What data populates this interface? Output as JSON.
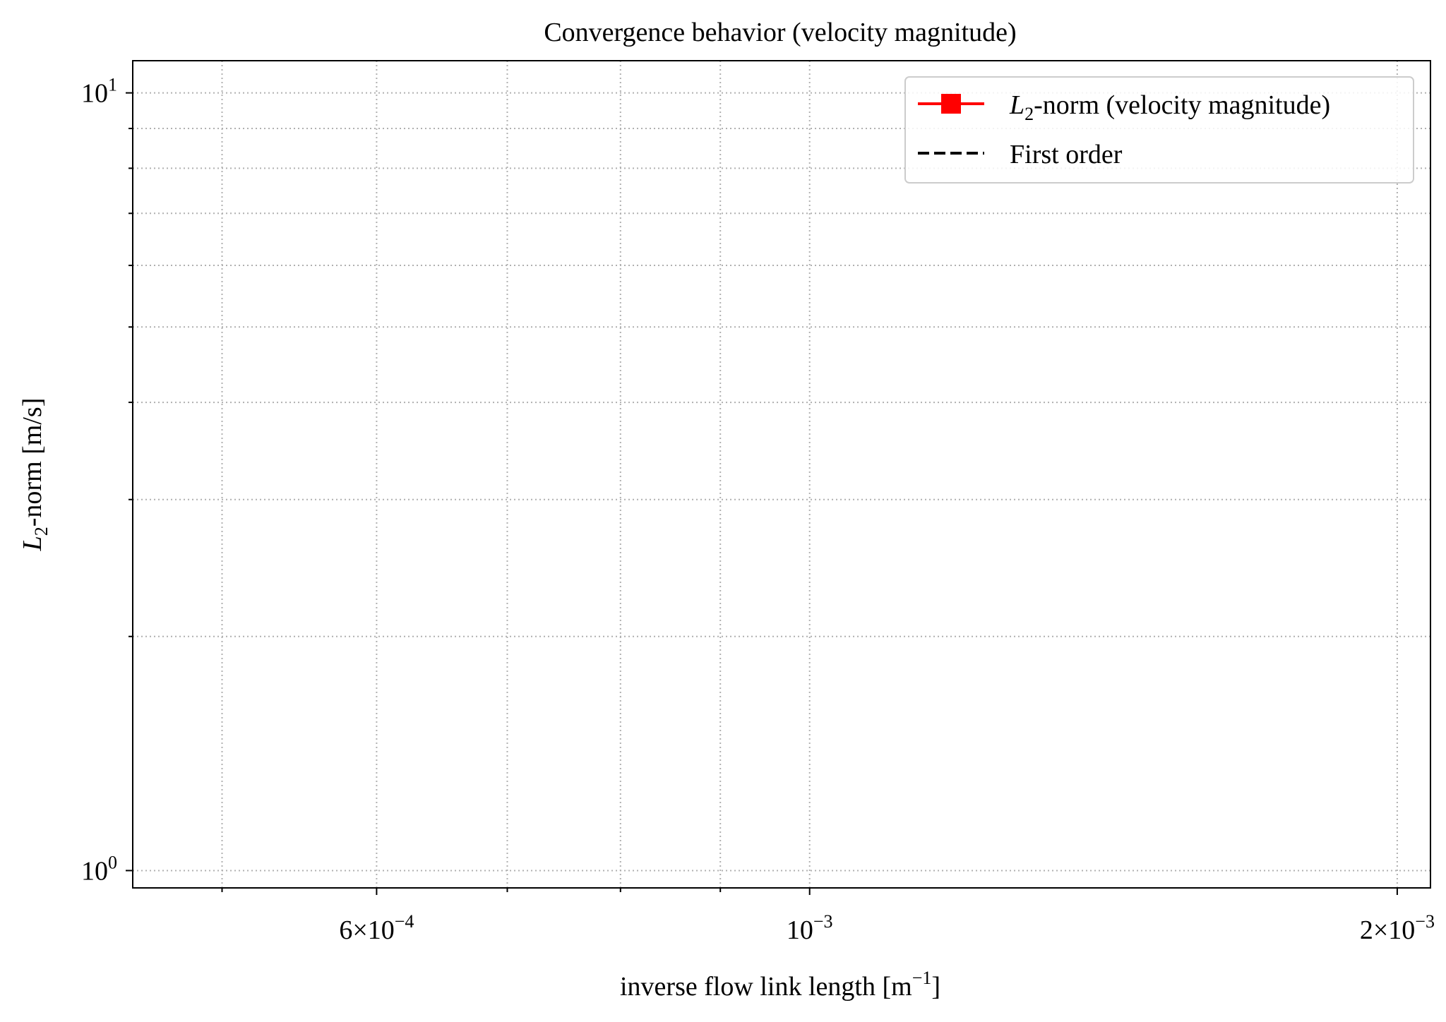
{
  "chart_data": {
    "type": "line",
    "title": "Convergence behavior (velocity magnitude)",
    "xlabel": "inverse flow link length [m",
    "xlabel_unit_exponent": "−1",
    "xlabel_close": "]",
    "ylabel": "-norm [m/s]",
    "ylabel_symbol": "L",
    "ylabel_subscript": "2",
    "xscale": "log",
    "yscale": "log",
    "xlim": [
      0.00045,
      0.00208
    ],
    "ylim": [
      0.95,
      11.0
    ],
    "grid": true,
    "x_major_ticks": [
      {
        "value": 0.0006,
        "mantissa": "6",
        "exponent": "−4"
      },
      {
        "value": 0.001,
        "mantissa": "",
        "exponent": "−3"
      },
      {
        "value": 0.002,
        "mantissa": "2",
        "exponent": "−3"
      }
    ],
    "x_minor_ticks": [
      0.0005,
      0.0007,
      0.0008,
      0.0009
    ],
    "y_major_ticks": [
      {
        "value": 1,
        "exponent": "0"
      },
      {
        "value": 10,
        "exponent": "1"
      }
    ],
    "y_minor_ticks": [
      2,
      3,
      4,
      5,
      6,
      7,
      8,
      9
    ],
    "legend_position": "top-right",
    "legend": [
      {
        "symbol": "L",
        "subscript": "2",
        "label": "-norm (velocity magnitude)",
        "color": "#ff0000",
        "style": "solid",
        "marker": "square"
      },
      {
        "symbol": "",
        "subscript": "",
        "label": "First order",
        "color": "#000000",
        "style": "dashed",
        "marker": "none"
      }
    ],
    "series": []
  }
}
